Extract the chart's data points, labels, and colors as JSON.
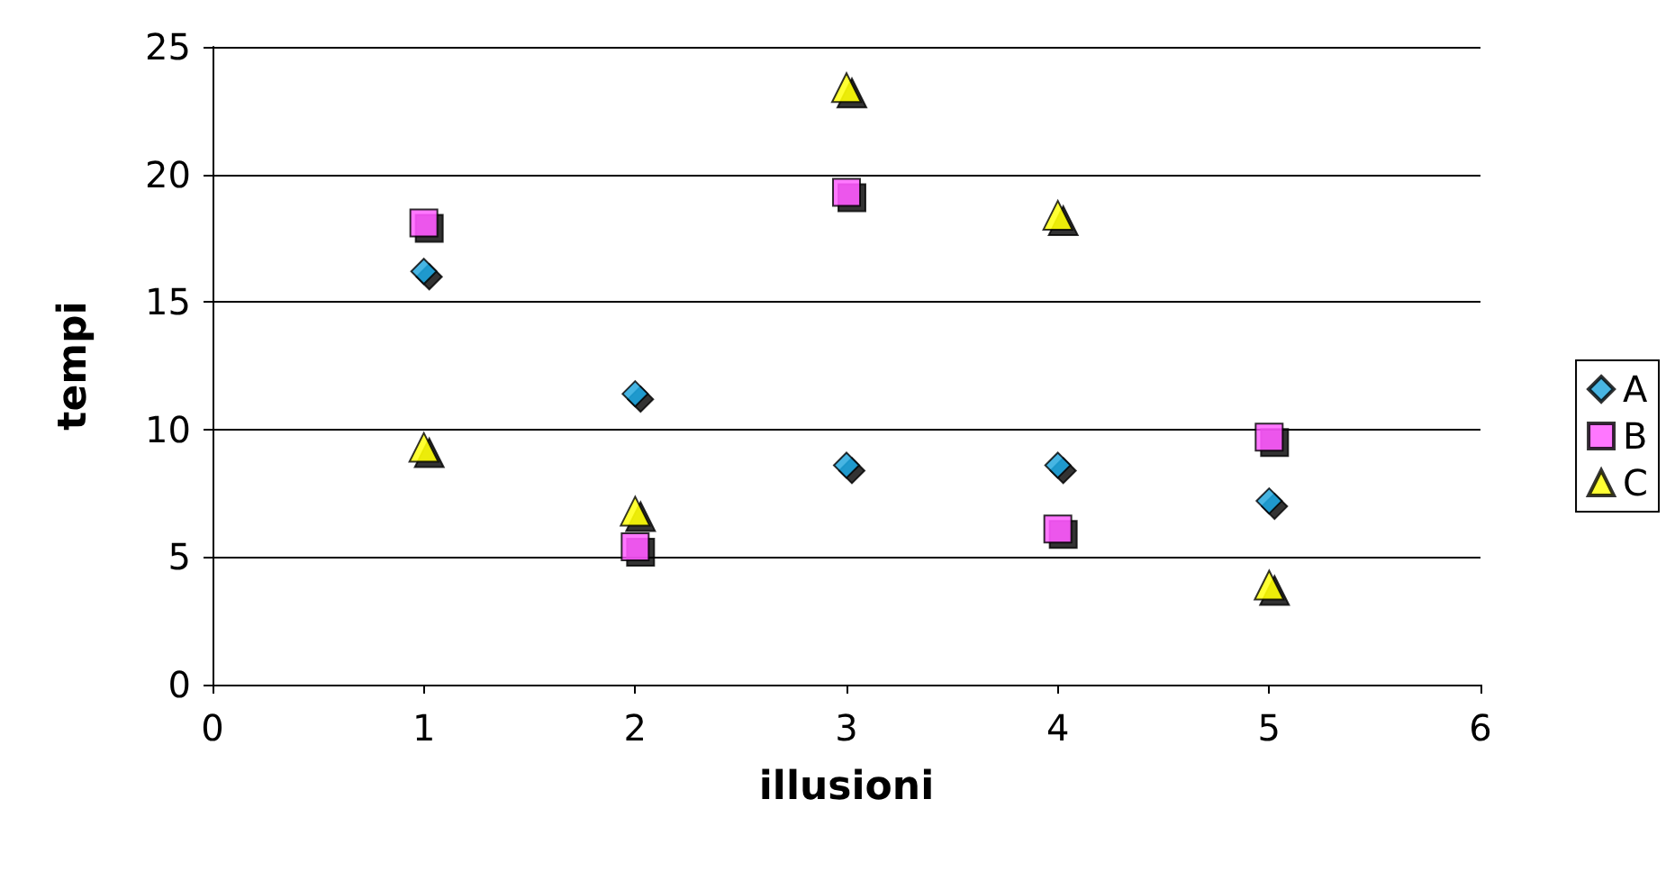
{
  "chart_data": {
    "type": "scatter",
    "xlabel": "illusioni",
    "ylabel": "tempi",
    "x": [
      1,
      2,
      3,
      4,
      5
    ],
    "series": [
      {
        "name": "A",
        "color": "#1aa3dc",
        "marker": "diamond",
        "values": [
          16.2,
          11.4,
          8.6,
          8.6,
          7.2
        ]
      },
      {
        "name": "B",
        "color": "#ff55ff",
        "marker": "square",
        "values": [
          18.1,
          5.4,
          19.3,
          6.1,
          9.7
        ]
      },
      {
        "name": "C",
        "color": "#ffff00",
        "marker": "triangle",
        "values": [
          9.3,
          6.8,
          23.4,
          18.4,
          3.9
        ]
      }
    ],
    "xlim": [
      0,
      6
    ],
    "xticks": [
      0,
      1,
      2,
      3,
      4,
      5,
      6
    ],
    "ylim": [
      0,
      25
    ],
    "yticks": [
      0,
      5,
      10,
      15,
      20,
      25
    ],
    "grid": "y",
    "legend": "right"
  }
}
